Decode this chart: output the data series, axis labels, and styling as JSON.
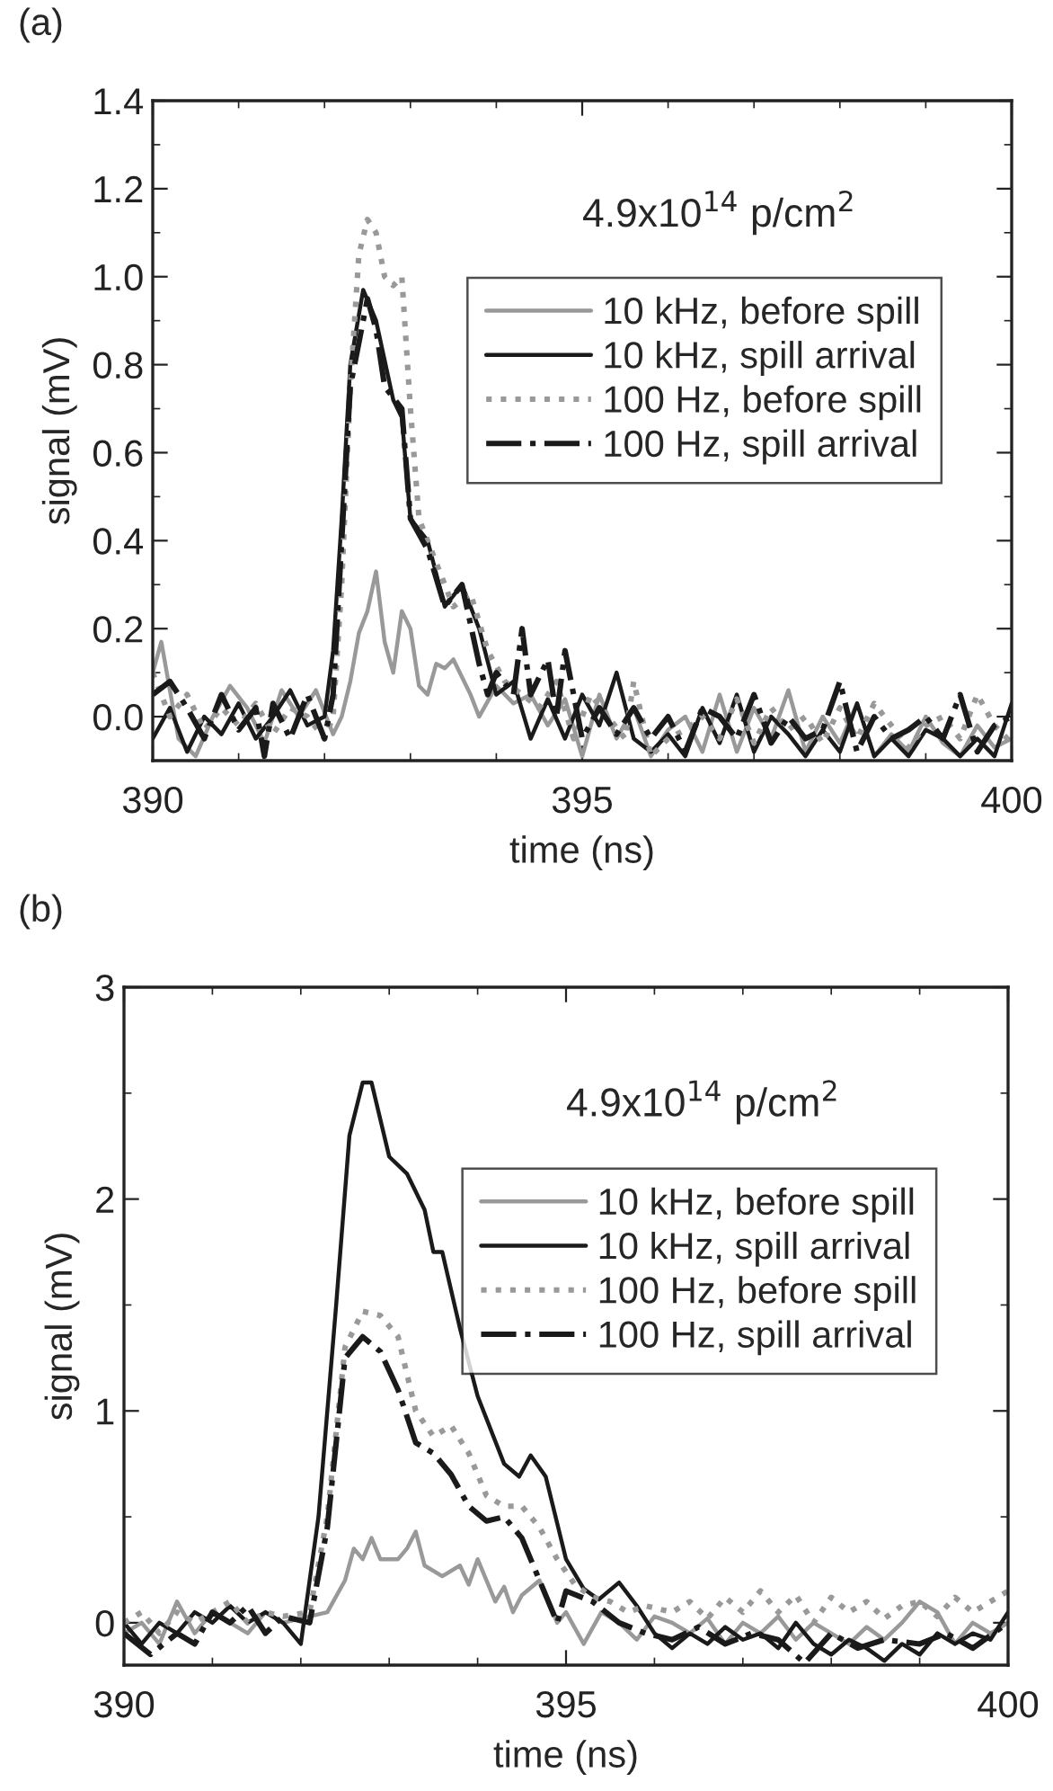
{
  "chart_data": [
    {
      "type": "line",
      "title": "(a)",
      "xlabel": "time (ns)",
      "ylabel": "signal (mV)",
      "annotations": [
        "4.9x10$^{14}$ p/cm$^{2}$"
      ],
      "xlim": [
        390,
        400
      ],
      "xticks": [
        390,
        395,
        400
      ],
      "ylim": [
        -0.1,
        1.4
      ],
      "yticks": [
        {
          "value": 0,
          "label": "0.0"
        },
        0.2,
        0.4,
        0.6,
        0.8,
        {
          "value": 1,
          "label": "1.0"
        },
        1.2,
        1.4
      ],
      "grid": false,
      "legend": "top right",
      "marker": "none",
      "series": [
        {
          "name": "10 kHz, before spill",
          "color": "#999999",
          "line_style": "solid",
          "x": [
            390.0,
            390.1,
            390.3,
            390.5,
            390.7,
            390.9,
            391.1,
            391.3,
            391.5,
            391.7,
            391.9,
            392.1,
            392.2,
            392.3,
            392.4,
            392.5,
            392.6,
            392.7,
            392.8,
            392.9,
            393.0,
            393.1,
            393.2,
            393.3,
            393.4,
            393.5,
            393.7,
            393.8,
            394.0,
            394.2,
            394.4,
            394.6,
            394.8,
            395.0,
            395.2,
            395.4,
            395.6,
            395.8,
            396.0,
            396.2,
            396.4,
            396.6,
            396.8,
            397.0,
            397.2,
            397.4,
            397.6,
            397.8,
            398.0,
            398.2,
            398.4,
            398.6,
            398.8,
            399.0,
            399.2,
            399.4,
            399.6,
            399.8,
            400.0
          ],
          "values": [
            0.1,
            0.17,
            -0.05,
            -0.09,
            0.0,
            0.07,
            0.02,
            -0.06,
            0.06,
            0.0,
            0.06,
            -0.04,
            0.0,
            0.08,
            0.19,
            0.24,
            0.33,
            0.17,
            0.1,
            0.24,
            0.2,
            0.07,
            0.05,
            0.12,
            0.11,
            0.13,
            0.05,
            0.0,
            0.07,
            0.03,
            0.05,
            -0.02,
            0.04,
            -0.09,
            0.05,
            -0.05,
            0.02,
            -0.09,
            -0.03,
            0.0,
            -0.08,
            0.05,
            -0.08,
            0.02,
            -0.05,
            0.06,
            -0.08,
            0.0,
            -0.06,
            0.03,
            -0.09,
            -0.04,
            -0.08,
            0.0,
            -0.06,
            -0.09,
            -0.02,
            -0.07,
            -0.05
          ]
        },
        {
          "name": "10 kHz, spill arrival",
          "color": "#1a1a1a",
          "line_style": "solid",
          "x": [
            390.0,
            390.2,
            390.4,
            390.6,
            390.8,
            391.0,
            391.2,
            391.4,
            391.6,
            391.8,
            392.0,
            392.1,
            392.2,
            392.3,
            392.45,
            392.6,
            392.8,
            392.9,
            393.0,
            393.2,
            393.4,
            393.6,
            393.8,
            394.0,
            394.2,
            394.4,
            394.6,
            394.8,
            395.0,
            395.2,
            395.4,
            395.6,
            395.8,
            396.0,
            396.2,
            396.4,
            396.6,
            396.8,
            397.0,
            397.2,
            397.4,
            397.6,
            397.8,
            398.0,
            398.2,
            398.4,
            398.6,
            398.8,
            399.0,
            399.2,
            399.4,
            399.6,
            399.8,
            400.0
          ],
          "values": [
            -0.05,
            0.02,
            -0.08,
            0.0,
            -0.04,
            0.03,
            -0.05,
            0.0,
            0.06,
            -0.02,
            0.0,
            0.15,
            0.45,
            0.8,
            0.97,
            0.9,
            0.72,
            0.68,
            0.45,
            0.4,
            0.25,
            0.3,
            0.2,
            0.05,
            0.08,
            -0.05,
            0.04,
            -0.05,
            0.05,
            -0.02,
            0.1,
            -0.05,
            -0.08,
            -0.04,
            -0.09,
            0.02,
            -0.06,
            0.05,
            -0.08,
            0.0,
            -0.04,
            -0.09,
            -0.03,
            -0.08,
            0.03,
            -0.09,
            -0.05,
            -0.09,
            -0.03,
            -0.05,
            -0.09,
            -0.05,
            -0.09,
            0.03
          ]
        },
        {
          "name": "100 Hz, before spill",
          "color": "#999999",
          "line_style": "dotted",
          "x": [
            390.0,
            390.2,
            390.4,
            390.6,
            390.8,
            391.0,
            391.2,
            391.4,
            391.6,
            391.8,
            392.0,
            392.1,
            392.2,
            392.3,
            392.4,
            392.5,
            392.6,
            392.7,
            392.8,
            392.9,
            393.0,
            393.1,
            393.3,
            393.5,
            393.7,
            393.9,
            394.1,
            394.3,
            394.5,
            394.7,
            394.9,
            395.1,
            395.3,
            395.5,
            395.6,
            395.8,
            396.0,
            396.2,
            396.4,
            396.6,
            396.8,
            397.0,
            397.2,
            397.4,
            397.6,
            397.8,
            398.0,
            398.2,
            398.4,
            398.6,
            398.8,
            399.0,
            399.2,
            399.4,
            399.6,
            399.8,
            400.0
          ],
          "values": [
            0.1,
            0.0,
            0.05,
            -0.03,
            0.02,
            -0.02,
            0.03,
            -0.04,
            0.02,
            0.0,
            -0.05,
            0.0,
            0.3,
            0.75,
            1.05,
            1.13,
            1.1,
            1.0,
            0.98,
            1.0,
            0.7,
            0.45,
            0.35,
            0.25,
            0.28,
            0.15,
            0.08,
            0.05,
            0.02,
            0.08,
            -0.05,
            0.05,
            0.0,
            -0.05,
            0.08,
            -0.09,
            -0.05,
            -0.03,
            0.0,
            -0.05,
            0.04,
            -0.06,
            0.02,
            -0.03,
            0.0,
            -0.06,
            0.02,
            -0.05,
            0.03,
            -0.02,
            -0.07,
            -0.02,
            0.0,
            -0.05,
            0.05,
            -0.02,
            -0.06
          ]
        },
        {
          "name": "100 Hz, spill arrival",
          "color": "#1a1a1a",
          "line_style": "dashdot",
          "x": [
            390.0,
            390.2,
            390.4,
            390.6,
            390.8,
            391.0,
            391.2,
            391.3,
            391.4,
            391.6,
            391.8,
            392.0,
            392.1,
            392.2,
            392.3,
            392.4,
            392.5,
            392.6,
            392.7,
            392.9,
            393.0,
            393.2,
            393.4,
            393.6,
            393.8,
            393.9,
            394.0,
            394.2,
            394.3,
            394.4,
            394.6,
            394.7,
            394.8,
            394.9,
            395.0,
            395.2,
            395.4,
            395.6,
            395.8,
            396.0,
            396.2,
            396.4,
            396.6,
            396.8,
            397.0,
            397.2,
            397.4,
            397.6,
            397.8,
            398.0,
            398.2,
            398.4,
            398.6,
            398.8,
            399.0,
            399.2,
            399.4,
            399.6,
            399.8,
            400.0
          ],
          "values": [
            0.05,
            0.08,
            0.02,
            -0.05,
            0.05,
            -0.03,
            0.02,
            -0.09,
            0.03,
            -0.05,
            0.05,
            -0.05,
            0.05,
            0.4,
            0.75,
            0.85,
            0.95,
            0.88,
            0.75,
            0.7,
            0.45,
            0.38,
            0.25,
            0.3,
            0.12,
            0.05,
            0.1,
            0.05,
            0.2,
            0.05,
            0.13,
            0.0,
            0.15,
            0.05,
            -0.05,
            0.02,
            -0.04,
            0.02,
            -0.05,
            0.0,
            -0.08,
            0.02,
            0.0,
            -0.05,
            0.05,
            -0.06,
            0.0,
            -0.05,
            -0.03,
            0.08,
            -0.08,
            0.0,
            -0.05,
            -0.03,
            0.0,
            -0.05,
            0.05,
            -0.08,
            -0.02,
            0.0
          ]
        }
      ]
    },
    {
      "type": "line",
      "title": "(b)",
      "xlabel": "time (ns)",
      "ylabel": "signal (mV)",
      "annotations": [
        "4.9x10$^{14}$ p/cm$^{2}$"
      ],
      "xlim": [
        390,
        400
      ],
      "xticks": [
        390,
        395,
        400
      ],
      "ylim": [
        -0.2,
        3
      ],
      "yticks": [
        0,
        1,
        2,
        3
      ],
      "grid": false,
      "legend": "top right",
      "marker": "none",
      "series": [
        {
          "name": "10 kHz, before spill",
          "color": "#999999",
          "line_style": "solid",
          "x": [
            390.0,
            390.2,
            390.4,
            390.6,
            390.8,
            391.0,
            391.2,
            391.4,
            391.6,
            391.8,
            392.0,
            392.3,
            392.5,
            392.6,
            392.7,
            392.8,
            392.9,
            393.1,
            393.2,
            393.3,
            393.4,
            393.6,
            393.8,
            393.9,
            394.0,
            394.2,
            394.3,
            394.4,
            394.5,
            394.7,
            394.9,
            395.0,
            395.2,
            395.4,
            395.6,
            395.8,
            396.0,
            396.2,
            396.4,
            396.6,
            396.8,
            397.0,
            397.2,
            397.4,
            397.6,
            397.8,
            398.0,
            398.2,
            398.4,
            398.6,
            398.8,
            399.0,
            399.2,
            399.4,
            399.6,
            399.8,
            400.0
          ],
          "values": [
            -0.05,
            0.0,
            -0.1,
            0.1,
            -0.05,
            0.05,
            0.0,
            -0.05,
            0.05,
            0.0,
            0.02,
            0.05,
            0.2,
            0.35,
            0.3,
            0.4,
            0.3,
            0.3,
            0.35,
            0.43,
            0.27,
            0.22,
            0.27,
            0.18,
            0.3,
            0.1,
            0.17,
            0.05,
            0.13,
            0.2,
            0.0,
            0.05,
            -0.1,
            0.05,
            0.0,
            -0.08,
            0.03,
            0.0,
            -0.05,
            0.02,
            -0.1,
            0.0,
            -0.05,
            0.03,
            -0.08,
            0.0,
            -0.05,
            -0.1,
            -0.02,
            -0.08,
            0.0,
            0.1,
            0.05,
            -0.1,
            0.0,
            -0.05,
            0.0
          ]
        },
        {
          "name": "10 kHz, spill arrival",
          "color": "#1a1a1a",
          "line_style": "solid",
          "x": [
            390.0,
            390.2,
            390.4,
            390.6,
            390.8,
            391.0,
            391.2,
            391.4,
            391.6,
            391.8,
            392.0,
            392.2,
            392.4,
            392.55,
            392.7,
            392.8,
            393.0,
            393.2,
            393.4,
            393.5,
            393.6,
            393.8,
            394.0,
            394.3,
            394.47,
            394.6,
            394.77,
            395.0,
            395.2,
            395.37,
            395.6,
            395.8,
            396.0,
            396.2,
            396.4,
            396.6,
            396.8,
            397.0,
            397.2,
            397.4,
            397.6,
            397.8,
            398.0,
            398.2,
            398.4,
            398.6,
            398.8,
            399.0,
            399.2,
            399.4,
            399.6,
            399.8,
            400.0
          ],
          "values": [
            0.0,
            -0.1,
            0.0,
            -0.05,
            0.05,
            0.0,
            0.08,
            0.0,
            0.05,
            0.0,
            -0.1,
            0.5,
            1.5,
            2.3,
            2.55,
            2.55,
            2.2,
            2.12,
            1.95,
            1.75,
            1.75,
            1.39,
            1.07,
            0.75,
            0.69,
            0.79,
            0.69,
            0.3,
            0.16,
            0.11,
            0.19,
            0.08,
            -0.05,
            -0.12,
            -0.05,
            -0.1,
            -0.02,
            -0.08,
            -0.05,
            -0.12,
            0.0,
            -0.1,
            -0.15,
            -0.08,
            -0.12,
            -0.18,
            -0.1,
            -0.15,
            -0.05,
            -0.1,
            -0.05,
            -0.08,
            0.05
          ]
        },
        {
          "name": "100 Hz, before spill",
          "color": "#999999",
          "line_style": "dotted",
          "x": [
            390.0,
            390.2,
            390.4,
            390.6,
            390.8,
            391.0,
            391.2,
            391.4,
            391.6,
            391.8,
            392.1,
            392.3,
            392.5,
            392.7,
            392.9,
            393.1,
            393.3,
            393.5,
            393.7,
            393.9,
            394.1,
            394.3,
            394.5,
            394.7,
            394.9,
            395.1,
            395.3,
            395.5,
            395.7,
            395.9,
            396.2,
            396.4,
            396.6,
            396.8,
            397.0,
            397.2,
            397.4,
            397.6,
            397.8,
            398.0,
            398.2,
            398.4,
            398.6,
            398.8,
            399.0,
            399.2,
            399.4,
            399.6,
            399.8,
            400.0
          ],
          "values": [
            0.0,
            0.05,
            -0.05,
            0.05,
            0.0,
            0.05,
            0.1,
            0.0,
            0.05,
            0.03,
            0.05,
            0.5,
            1.3,
            1.47,
            1.45,
            1.35,
            1.0,
            0.88,
            0.93,
            0.8,
            0.6,
            0.55,
            0.55,
            0.45,
            0.3,
            0.18,
            0.12,
            0.1,
            0.05,
            0.08,
            0.05,
            0.1,
            0.02,
            0.12,
            0.05,
            0.15,
            0.05,
            0.13,
            0.0,
            0.12,
            0.05,
            0.1,
            0.02,
            0.08,
            0.1,
            0.03,
            0.12,
            0.05,
            0.1,
            0.15
          ]
        },
        {
          "name": "100 Hz, spill arrival",
          "color": "#1a1a1a",
          "line_style": "dashdot",
          "x": [
            390.0,
            390.3,
            390.6,
            390.8,
            391.0,
            391.2,
            391.4,
            391.6,
            391.8,
            392.1,
            392.3,
            392.5,
            392.7,
            392.9,
            393.1,
            393.3,
            393.5,
            393.7,
            393.9,
            394.1,
            394.3,
            394.5,
            394.7,
            394.9,
            395.0,
            395.3,
            395.6,
            395.9,
            396.2,
            396.5,
            396.8,
            397.1,
            397.4,
            397.7,
            398.0,
            398.3,
            398.6,
            399.0,
            399.3,
            399.6,
            400.0
          ],
          "values": [
            -0.05,
            -0.15,
            -0.05,
            -0.1,
            0.05,
            0.0,
            0.08,
            -0.05,
            0.03,
            0.0,
            0.45,
            1.25,
            1.35,
            1.28,
            1.1,
            0.85,
            0.8,
            0.7,
            0.55,
            0.48,
            0.5,
            0.4,
            0.2,
            0.0,
            0.15,
            0.1,
            0.0,
            -0.05,
            -0.08,
            -0.02,
            -0.1,
            -0.05,
            -0.08,
            -0.19,
            -0.05,
            -0.12,
            -0.08,
            -0.1,
            -0.05,
            -0.12,
            0.0
          ]
        }
      ]
    }
  ]
}
